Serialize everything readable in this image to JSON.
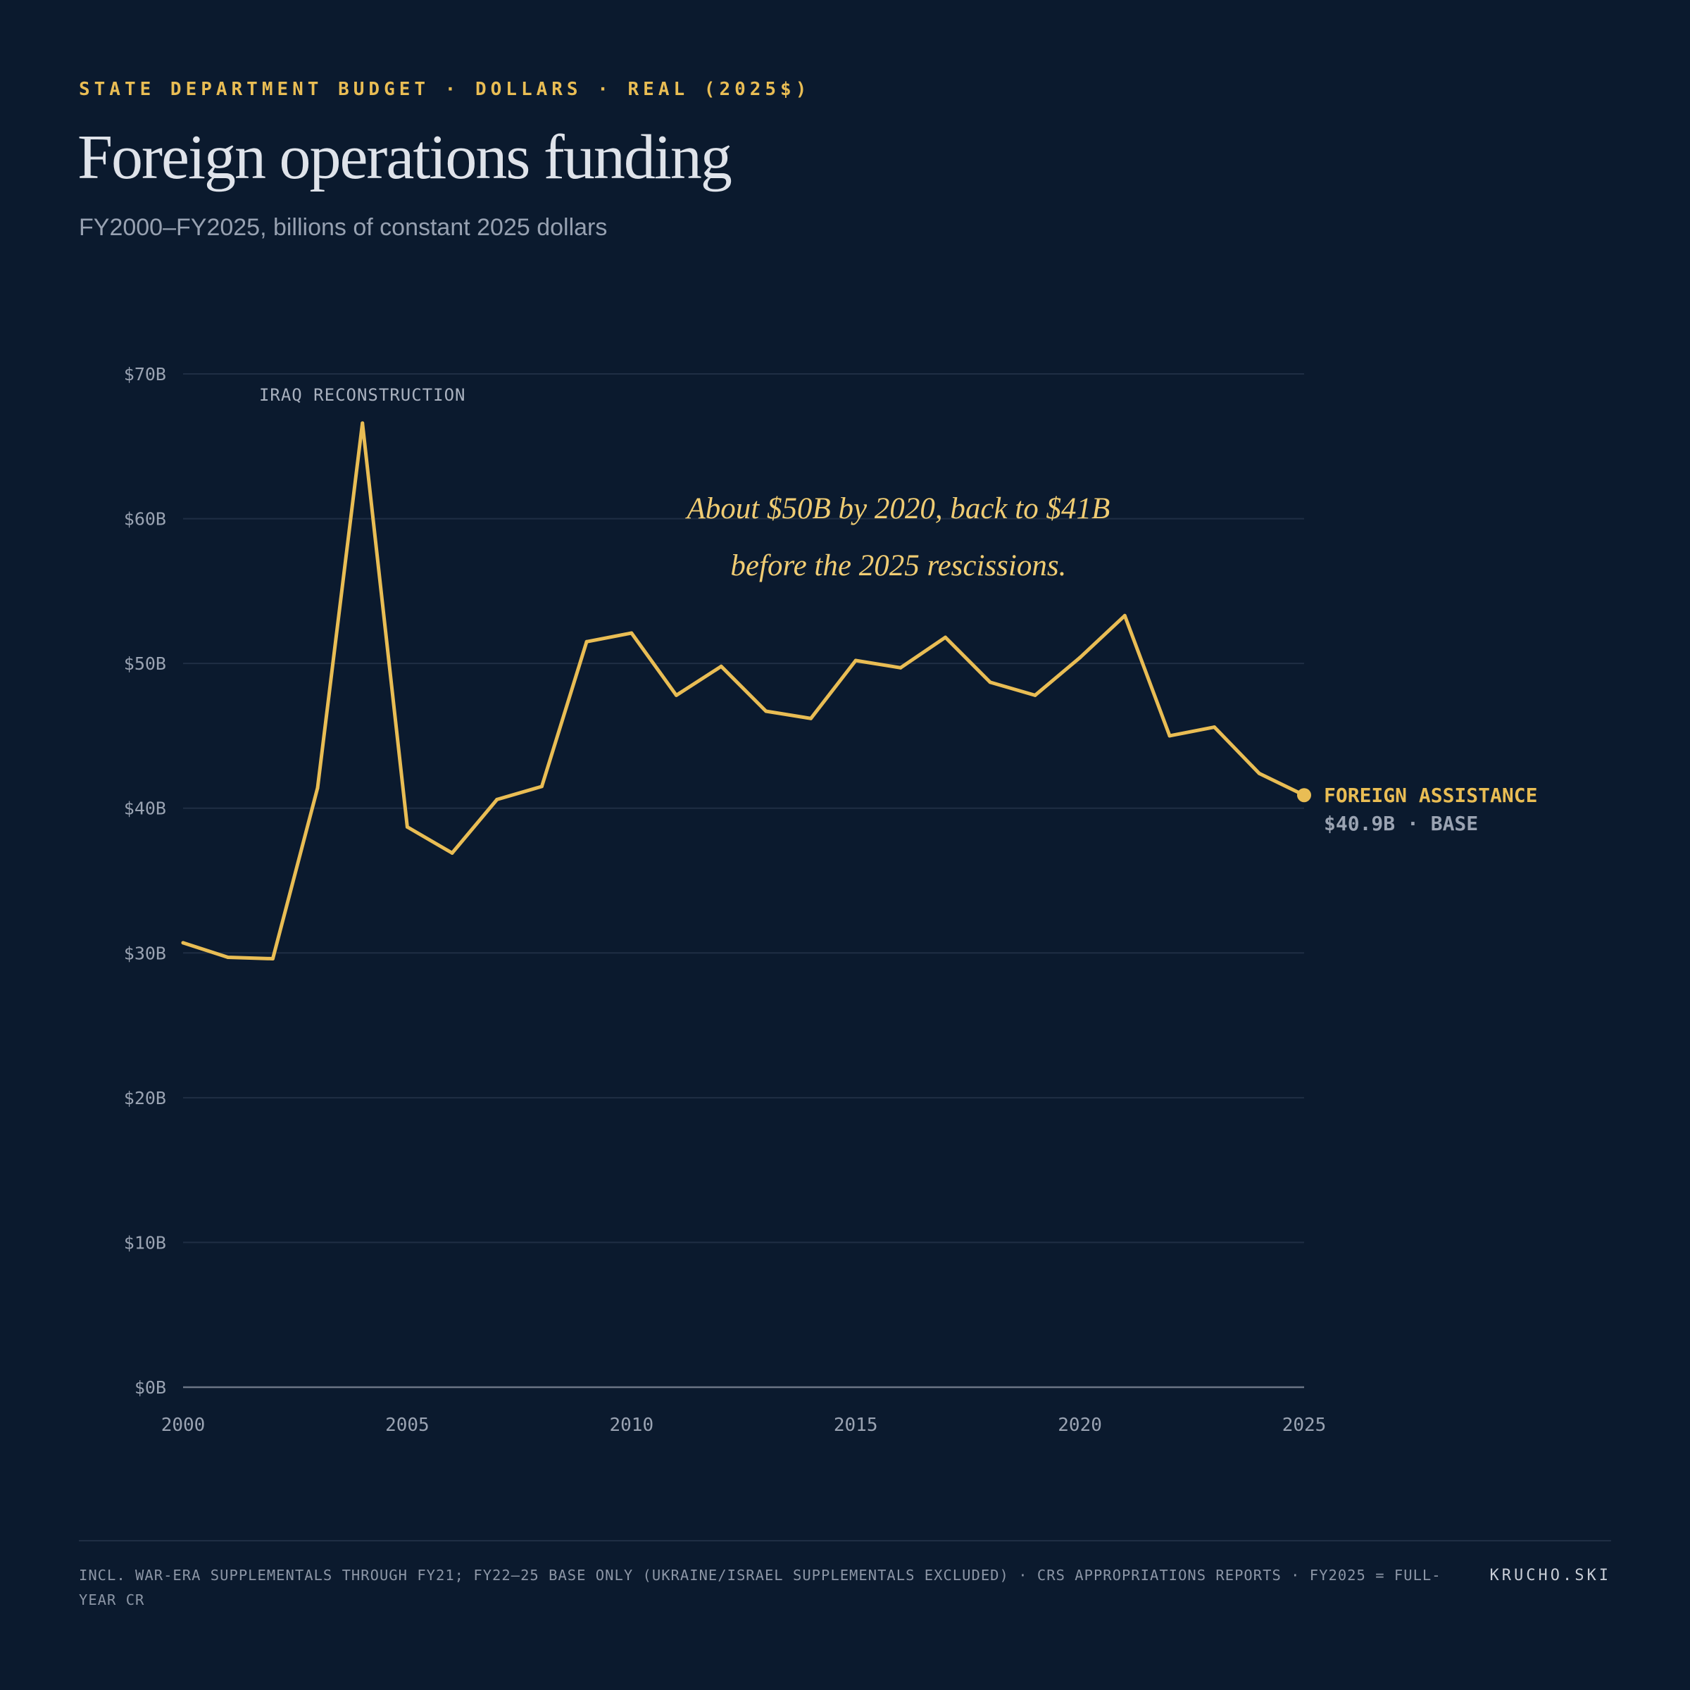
{
  "header": {
    "kicker": "STATE DEPARTMENT BUDGET · DOLLARS · REAL (2025$)",
    "title": "Foreign operations funding",
    "subtitle": "FY2000–FY2025, billions of constant 2025 dollars"
  },
  "chart_data": {
    "type": "line",
    "title": "Foreign operations funding",
    "subtitle": "FY2000–FY2025, billions of constant 2025 dollars",
    "xlabel": "",
    "ylabel": "",
    "xlim": [
      2000,
      2025
    ],
    "ylim": [
      0,
      70
    ],
    "x_ticks": [
      2000,
      2005,
      2010,
      2015,
      2020,
      2025
    ],
    "y_ticks": [
      0,
      10,
      20,
      30,
      40,
      50,
      60,
      70
    ],
    "y_tick_labels": [
      "$0B",
      "$10B",
      "$20B",
      "$30B",
      "$40B",
      "$50B",
      "$60B",
      "$70B"
    ],
    "grid": true,
    "series": [
      {
        "name": "FOREIGN ASSISTANCE",
        "color": "#e9bd54",
        "x": [
          2000,
          2001,
          2002,
          2003,
          2004,
          2005,
          2006,
          2007,
          2008,
          2009,
          2010,
          2011,
          2012,
          2013,
          2014,
          2015,
          2016,
          2017,
          2018,
          2019,
          2020,
          2021,
          2022,
          2023,
          2024,
          2025
        ],
        "values": [
          30.7,
          29.7,
          29.6,
          41.4,
          66.6,
          38.7,
          36.9,
          40.6,
          41.5,
          51.5,
          52.1,
          47.8,
          49.8,
          46.7,
          46.2,
          50.2,
          49.7,
          51.8,
          48.7,
          47.8,
          50.4,
          53.3,
          45.0,
          45.6,
          42.4,
          40.9
        ]
      }
    ],
    "end_label": {
      "name": "FOREIGN ASSISTANCE",
      "value_text": "$40.9B · BASE"
    },
    "annotations": [
      {
        "text": "IRAQ RECONSTRUCTION",
        "x": 2004,
        "y": 66.6
      },
      {
        "lines": [
          "About $50B by 2020, back to $41B",
          "before the 2025 rescissions."
        ],
        "x": 2016,
        "y": 59
      }
    ]
  },
  "footer": {
    "note": "INCL. WAR-ERA SUPPLEMENTALS THROUGH FY21; FY22–25 BASE ONLY (UKRAINE/ISRAEL SUPPLEMENTALS EXCLUDED) · CRS APPROPRIATIONS REPORTS · FY2025 = FULL-YEAR CR",
    "credit": "KRUCHO.SKI"
  },
  "colors": {
    "background": "#0b1a2e",
    "accent": "#e9bd54",
    "grid": "#1f2e44",
    "axis": "#6b7585",
    "tick_text": "#9aa3b2"
  }
}
